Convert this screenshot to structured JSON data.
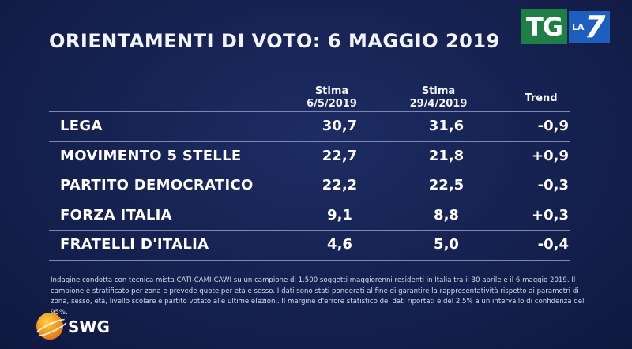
{
  "title": "ORIENTAMENTI DI VOTO: 6 MAGGIO 2019",
  "logo": {
    "tg": "TG",
    "la": "LA",
    "seven": "7"
  },
  "columns": [
    {
      "line1": "Stima",
      "line2": "6/5/2019"
    },
    {
      "line1": "Stima",
      "line2": "29/4/2019"
    },
    {
      "line1": "Trend",
      "line2": ""
    }
  ],
  "chart_data": {
    "type": "table",
    "title": "ORIENTAMENTI DI VOTO: 6 MAGGIO 2019",
    "headers": [
      "Stima 6/5/2019",
      "Stima 29/4/2019",
      "Trend"
    ],
    "rows": [
      {
        "party": "LEGA",
        "stima_6_5_2019": "30,7",
        "stima_29_4_2019": "31,6",
        "trend": "-0,9"
      },
      {
        "party": "MOVIMENTO 5 STELLE",
        "stima_6_5_2019": "22,7",
        "stima_29_4_2019": "21,8",
        "trend": "+0,9"
      },
      {
        "party": "PARTITO DEMOCRATICO",
        "stima_6_5_2019": "22,2",
        "stima_29_4_2019": "22,5",
        "trend": "-0,3"
      },
      {
        "party": "FORZA ITALIA",
        "stima_6_5_2019": "9,1",
        "stima_29_4_2019": "8,8",
        "trend": "+0,3"
      },
      {
        "party": "FRATELLI D'ITALIA",
        "stima_6_5_2019": "4,6",
        "stima_29_4_2019": "5,0",
        "trend": "-0,4"
      }
    ]
  },
  "footnote": "Indagine condotta con tecnica mista CATI-CAMI-CAWI su un campione di 1.500 soggetti maggiorenni residenti in Italia tra il 30 aprile e il 6 maggio 2019. Il campione è stratificato per zona e prevede quote per età e sesso. I dati sono stati ponderati al fine di garantire la rappresentatività rispetto ai parametri di zona, sesso, età, livello scolare e partito votato alle ultime elezioni. Il margine d'errore statistico dei dati riportati è del 2,5% a un intervallo di confidenza del 95%.",
  "source_brand": "SWG"
}
